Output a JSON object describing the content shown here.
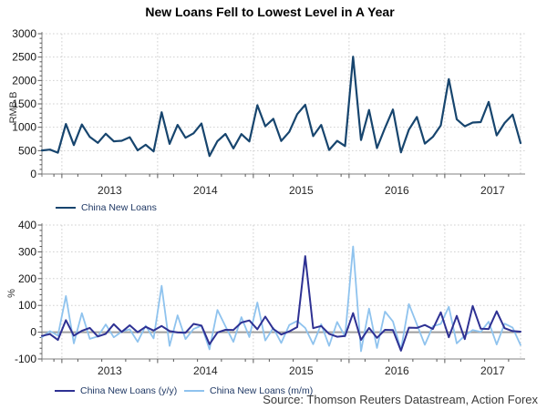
{
  "header": {
    "title": "New Loans Fell to Lowest Level in A Year"
  },
  "source_note": "Source: Thomson Reuters Datastream, Action Forex",
  "colors": {
    "new_loans_line": "#17456E",
    "yoy_line": "#2E3193",
    "mom_line": "#8FC3EE",
    "zero_line": "#9E9E9E",
    "gridline": "#D0D0D0",
    "axis": "#808080",
    "tick": "#595959",
    "tick_label": "#141414",
    "legend_text": "#1F3864"
  },
  "chart_data": [
    {
      "type": "line",
      "title": "China New Loans (monthly)",
      "ylabel": "RMB B",
      "ylim": [
        0,
        3000
      ],
      "yticks": [
        0,
        500,
        1000,
        1500,
        2000,
        2500,
        3000
      ],
      "x_start": "2012-10",
      "x_end": "2017-10",
      "x_year_labels": [
        "2013",
        "2014",
        "2015",
        "2016",
        "2017"
      ],
      "grid": "dotted",
      "legend_position": "bottom-left",
      "legend": [
        "China New Loans"
      ],
      "series": [
        {
          "name": "China New Loans",
          "color": "#17456E",
          "values": [
            505,
            523,
            455,
            1070,
            620,
            1060,
            793,
            667,
            861,
            700,
            711,
            787,
            506,
            625,
            483,
            1320,
            645,
            1050,
            775,
            871,
            1080,
            385,
            703,
            857,
            548,
            853,
            697,
            1470,
            1020,
            1180,
            708,
            901,
            1280,
            1480,
            810,
            1050,
            514,
            709,
            598,
            2510,
            727,
            1370,
            556,
            986,
            1380,
            464,
            949,
            1220,
            651,
            795,
            1040,
            2030,
            1170,
            1020,
            1100,
            1110,
            1540,
            826,
            1090,
            1270,
            663
          ]
        }
      ]
    },
    {
      "type": "line",
      "title": "China New Loans growth rates",
      "ylabel": "%",
      "ylim": [
        -100,
        400
      ],
      "yticks": [
        -100,
        0,
        100,
        200,
        300,
        400
      ],
      "zero_line": true,
      "x_start": "2012-10",
      "x_end": "2017-10",
      "x_year_labels": [
        "2013",
        "2014",
        "2015",
        "2016",
        "2017"
      ],
      "grid": "dotted",
      "legend_position": "bottom-left",
      "legend": [
        "China New Loans (y/y)",
        "China New Loans (m/m)"
      ],
      "series": [
        {
          "name": "China New Loans (y/y)",
          "color": "#2E3193",
          "values": [
            -14,
            -7,
            -29,
            45,
            -13,
            5,
            16,
            -16,
            -6,
            30,
            1,
            26,
            0,
            20,
            6,
            23,
            4,
            -1,
            -2,
            31,
            25,
            -45,
            -1,
            9,
            8,
            36,
            44,
            11,
            58,
            12,
            -9,
            3,
            19,
            284,
            15,
            23,
            -6,
            -17,
            -14,
            71,
            -29,
            16,
            -21,
            9,
            8,
            -69,
            17,
            16,
            27,
            12,
            74,
            -19,
            61,
            -26,
            98,
            13,
            12,
            78,
            15,
            4,
            2
          ]
        },
        {
          "name": "China New Loans (m/m)",
          "color": "#8FC3EE",
          "values": [
            -19,
            4,
            -13,
            135,
            -42,
            71,
            -25,
            -16,
            29,
            -19,
            2,
            11,
            -36,
            24,
            -23,
            173,
            -51,
            63,
            -26,
            12,
            24,
            -64,
            83,
            22,
            -36,
            56,
            -18,
            111,
            -31,
            16,
            -40,
            27,
            42,
            16,
            -45,
            30,
            -51,
            38,
            -16,
            320,
            -71,
            88,
            -59,
            77,
            40,
            -66,
            105,
            29,
            -47,
            22,
            31,
            95,
            -42,
            -13,
            8,
            1,
            39,
            -46,
            32,
            17,
            -48
          ]
        }
      ]
    }
  ]
}
